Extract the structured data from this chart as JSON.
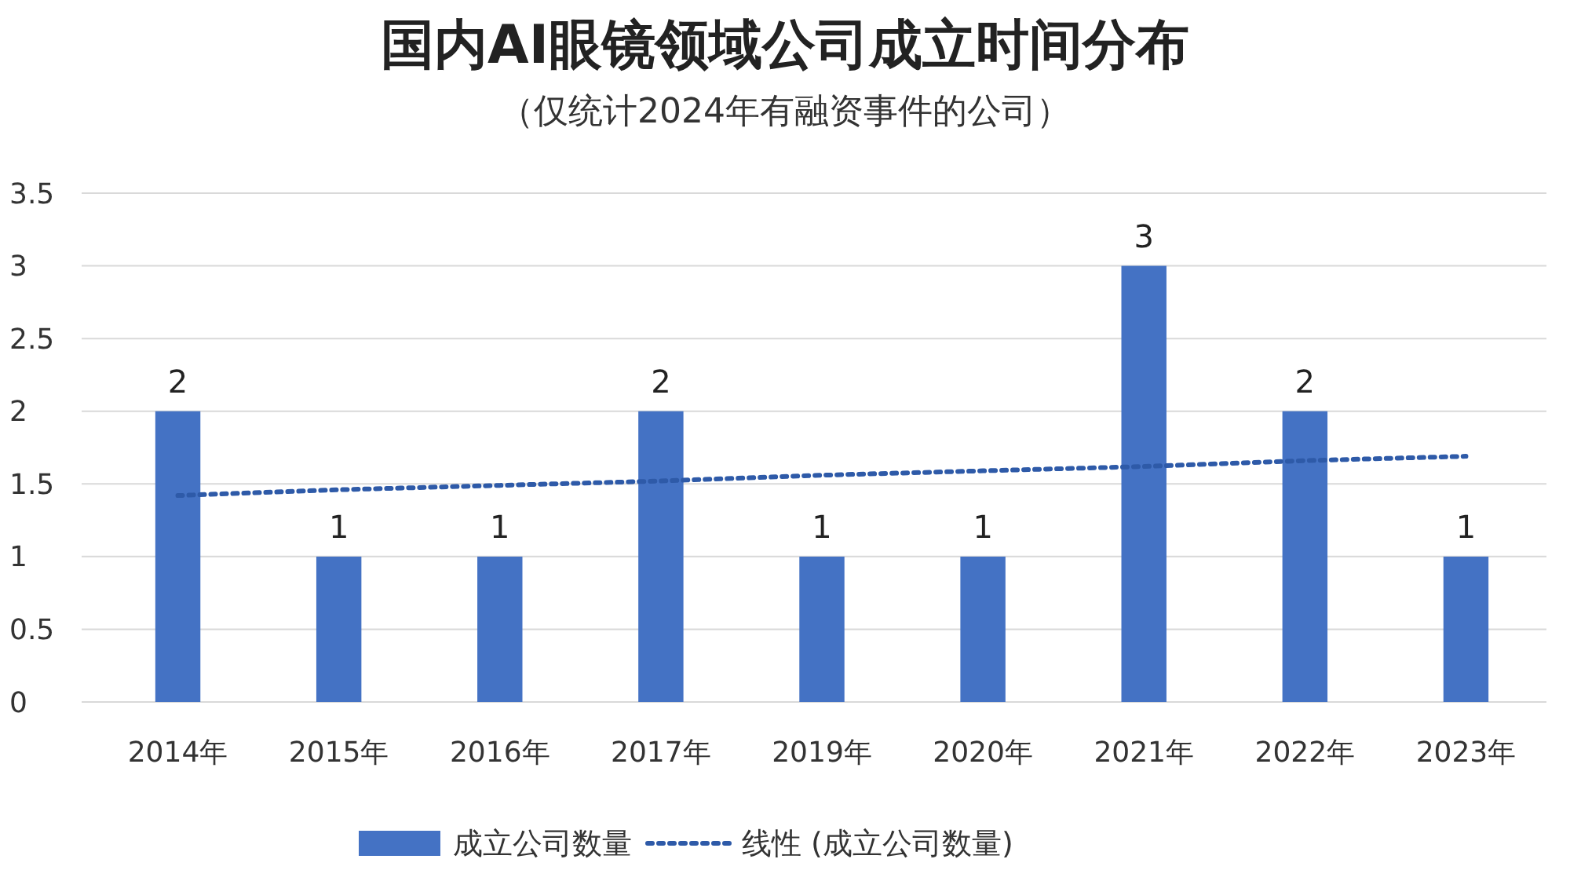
{
  "chart_data": {
    "type": "bar",
    "title": "国内AI眼镜领域公司成立时间分布",
    "subtitle": "（仅统计2024年有融资事件的公司）",
    "categories": [
      "2014年",
      "2015年",
      "2016年",
      "2017年",
      "2019年",
      "2020年",
      "2021年",
      "2022年",
      "2023年"
    ],
    "series": [
      {
        "name": "成立公司数量",
        "color": "#4472c4",
        "values": [
          2,
          1,
          1,
          2,
          1,
          1,
          3,
          2,
          1
        ],
        "value_labels": [
          "2",
          "1",
          "1",
          "2",
          "1",
          "1",
          "3",
          "2",
          "1"
        ]
      },
      {
        "name": "线性 (成立公司数量)",
        "type": "line",
        "color": "#2e5aa8",
        "line_style": "dotted",
        "values": [
          1.42,
          1.46,
          1.49,
          1.52,
          1.56,
          1.59,
          1.62,
          1.66,
          1.69
        ]
      }
    ],
    "ylim": [
      0,
      3.5
    ],
    "yticks": [
      0,
      0.5,
      1,
      1.5,
      2,
      2.5,
      3,
      3.5
    ],
    "grid": "y",
    "legend": "bottom"
  }
}
